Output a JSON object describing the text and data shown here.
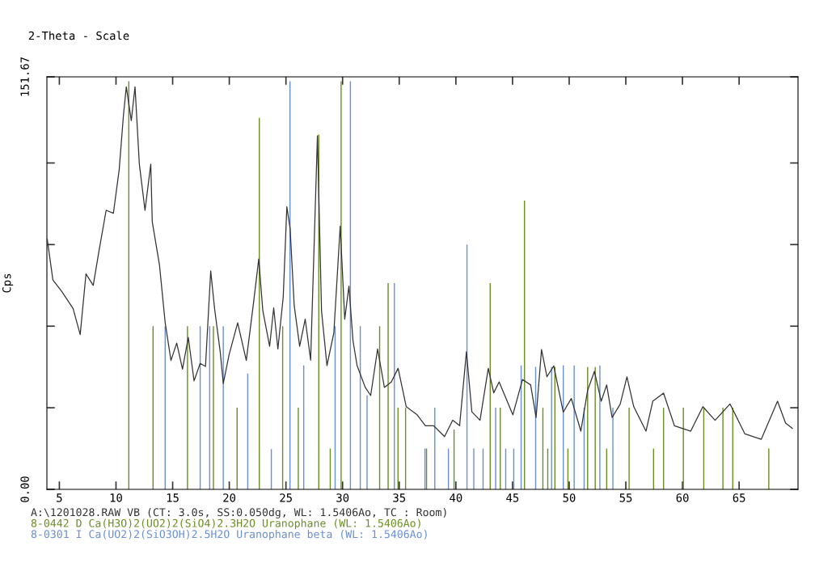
{
  "chart_data": {
    "type": "line",
    "xlabel": "2-Theta - Scale",
    "ylabel": "Cps",
    "xlim": [
      3.9,
      70.2
    ],
    "ylim": [
      0,
      151.67
    ],
    "xticks": [
      5,
      10,
      15,
      20,
      25,
      30,
      35,
      40,
      45,
      50,
      55,
      60,
      65
    ],
    "yticks": [
      {
        "value": 0,
        "label": "0.00"
      },
      {
        "value": 30,
        "label": null
      },
      {
        "value": 60,
        "label": null
      },
      {
        "value": 90,
        "label": null
      },
      {
        "value": 120,
        "label": null
      },
      {
        "value": 151.67,
        "label": "151.67"
      }
    ],
    "grid": false,
    "legend": "bottom",
    "marker": "none",
    "line_style": "solid",
    "series": [
      {
        "name": "A:\\1201028.RAW VB (CT: 3.0s, SS:0.050dg, WL: 1.5406Ao, TC : Room)",
        "color": "#333333",
        "x": [
          3.93,
          4.43,
          5.2,
          6.21,
          6.84,
          7.35,
          7.99,
          8.5,
          9.13,
          9.77,
          10.28,
          10.66,
          10.91,
          11.35,
          11.68,
          12.06,
          12.56,
          13.07,
          13.2,
          13.84,
          14.34,
          14.85,
          15.36,
          15.87,
          16.38,
          16.89,
          17.43,
          17.9,
          18.36,
          18.7,
          19.2,
          19.47,
          19.98,
          20.74,
          21.5,
          22.14,
          22.6,
          22.96,
          23.56,
          23.92,
          24.29,
          24.76,
          25.08,
          25.37,
          25.73,
          26.21,
          26.7,
          27.18,
          27.78,
          28.14,
          28.62,
          29.23,
          29.79,
          30.19,
          30.56,
          30.92,
          31.28,
          32.0,
          32.48,
          33.09,
          33.69,
          34.3,
          34.9,
          35.62,
          36.58,
          37.31,
          38.03,
          39.0,
          39.72,
          40.33,
          40.93,
          41.41,
          42.13,
          42.86,
          43.34,
          43.82,
          45.03,
          45.88,
          46.6,
          47.08,
          47.56,
          48.04,
          48.64,
          49.48,
          50.19,
          51.03,
          51.63,
          52.23,
          52.83,
          53.31,
          53.79,
          54.51,
          55.1,
          55.7,
          56.78,
          57.38,
          58.33,
          59.29,
          60.73,
          61.8,
          62.88,
          64.2,
          65.51,
          66.95,
          68.39,
          69.1,
          69.7
        ],
        "values": [
          92,
          77,
          72.8,
          66.5,
          56.9,
          79.2,
          75,
          87.7,
          102.6,
          101.5,
          117.5,
          137.7,
          148,
          135.6,
          148,
          119.6,
          102.6,
          119.6,
          98.4,
          82.4,
          61.3,
          47.4,
          53.8,
          44.2,
          55.9,
          39.9,
          46.3,
          45.2,
          80.3,
          66.5,
          50.5,
          38.9,
          49.5,
          61.2,
          47.4,
          68.6,
          84.7,
          65.7,
          52.6,
          66.7,
          51.6,
          70.7,
          103.9,
          95.8,
          67.6,
          52.6,
          62.6,
          47.5,
          130,
          65.7,
          45.5,
          57.6,
          96.8,
          62.6,
          74.7,
          54.6,
          45.5,
          37.5,
          34.5,
          51.6,
          37.5,
          39.5,
          44.5,
          30.4,
          27.4,
          23.4,
          23.4,
          19.4,
          25.4,
          23.4,
          50.6,
          28.5,
          25.4,
          44.5,
          35.5,
          39.5,
          27.4,
          40.4,
          38.4,
          26.4,
          51.4,
          41.4,
          45.4,
          28.4,
          33.4,
          21.4,
          36.4,
          43.4,
          32.4,
          38.4,
          26.4,
          31.4,
          41.4,
          30.4,
          21.4,
          32.4,
          35.4,
          23.4,
          21.4,
          30.4,
          25.4,
          31.4,
          20.4,
          18.4,
          32.4,
          24.4,
          22.4
        ]
      },
      {
        "name": "8-0442 D Ca(H3O)2(UO2)2(SiO4)2.3H2O Uranophane (WL: 1.5406Ao)",
        "type": "bar",
        "color": "#6b8e23",
        "x": [
          11.13,
          13.27,
          16.31,
          18.6,
          20.69,
          22.65,
          24.71,
          26.09,
          27.9,
          28.91,
          29.87,
          33.27,
          34.02,
          34.89,
          35.56,
          37.41,
          39.84,
          43.03,
          43.92,
          46.06,
          47.68,
          48.11,
          48.74,
          49.89,
          51.63,
          52.3,
          53.31,
          55.29,
          57.45,
          58.33,
          60.08,
          61.88,
          63.57,
          64.44,
          67.62
        ],
        "values": [
          150,
          60,
          60,
          60,
          30,
          136.6,
          60,
          30,
          130.5,
          15,
          150,
          60,
          75.8,
          30,
          30,
          15,
          22,
          75.8,
          30,
          106.2,
          30,
          15,
          45,
          15,
          45,
          45,
          15,
          30,
          15,
          30,
          30,
          30,
          30,
          30,
          15
        ]
      },
      {
        "name": "8-0301 I Ca(UO2)2(SiO3OH)2.5H2O Uranophane beta (WL: 1.5406Ao)",
        "type": "bar",
        "color": "#6a8fd6",
        "x": [
          14.34,
          17.43,
          18.27,
          19.47,
          21.63,
          23.71,
          25.36,
          26.57,
          29.34,
          30.69,
          31.56,
          32.16,
          34.57,
          37.27,
          38.14,
          39.34,
          40.98,
          41.58,
          42.4,
          43.51,
          44.4,
          45.11,
          45.76,
          47.04,
          48.45,
          49.48,
          50.44,
          51.32,
          52.71,
          53.86
        ],
        "values": [
          60,
          60,
          60,
          60,
          42.6,
          14.8,
          150,
          45.6,
          60,
          150,
          60,
          34.6,
          75.8,
          15,
          30,
          15,
          90,
          15,
          15,
          30,
          15,
          15,
          45.6,
          45,
          45,
          45.6,
          45.6,
          30,
          45.6,
          30
        ]
      }
    ]
  }
}
